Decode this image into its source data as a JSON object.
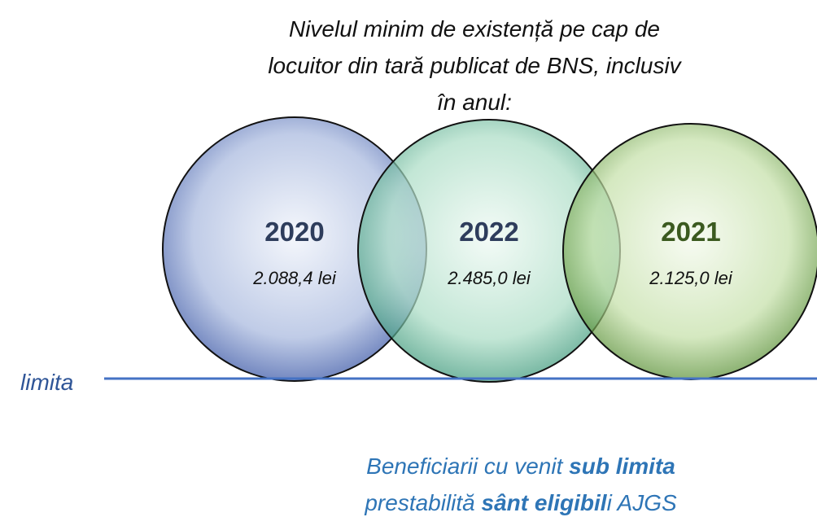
{
  "title": [
    "Nivelul minim de existență pe cap de",
    "locuitor din tară publicat de BNS, inclusiv",
    "în anul:"
  ],
  "circles": [
    {
      "year": "2020",
      "value": "2.088,4 lei"
    },
    {
      "year": "2022",
      "value": "2.485,0 lei"
    },
    {
      "year": "2021",
      "value": "2.125,0 lei"
    }
  ],
  "line_label": "limita",
  "note": {
    "line1": [
      "Beneficiarii cu venit ",
      "sub limita"
    ],
    "line2": [
      "prestabilită ",
      "sânt eligibil",
      "i AJGS"
    ]
  }
}
